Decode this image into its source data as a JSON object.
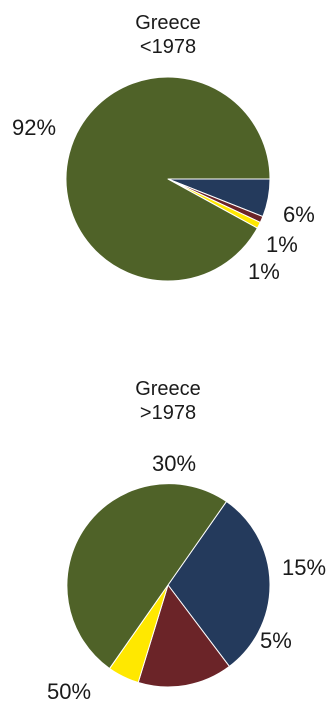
{
  "chart_data": [
    {
      "type": "pie",
      "title": [
        "Greece",
        "<1978"
      ],
      "slices": [
        {
          "value": 6,
          "label": "6%",
          "color": "#243a5c"
        },
        {
          "value": 1,
          "label": "1%",
          "color": "#6b2428"
        },
        {
          "value": 1,
          "label": "1%",
          "color": "#ffe800"
        },
        {
          "value": 92,
          "label": "92%",
          "color": "#4f6228"
        }
      ]
    },
    {
      "type": "pie",
      "title": [
        "Greece",
        ">1978"
      ],
      "slices": [
        {
          "value": 30,
          "label": "30%",
          "color": "#243a5c"
        },
        {
          "value": 15,
          "label": "15%",
          "color": "#6b2428"
        },
        {
          "value": 5,
          "label": "5%",
          "color": "#ffe800"
        },
        {
          "value": 50,
          "label": "50%",
          "color": "#4f6228"
        }
      ]
    }
  ]
}
